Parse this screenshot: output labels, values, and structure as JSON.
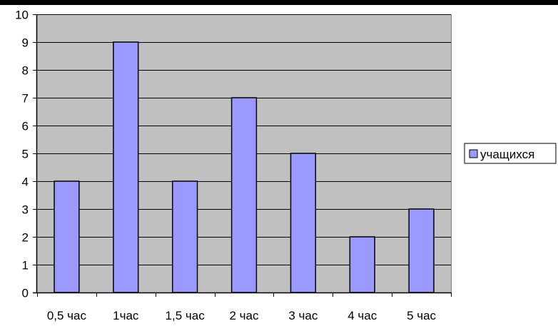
{
  "chart_data": {
    "type": "bar",
    "title": "",
    "xlabel": "",
    "ylabel": "",
    "categories": [
      "0,5 час",
      "1час",
      "1,5 час",
      "2 час",
      "3 час",
      "4 час",
      "5 час"
    ],
    "series": [
      {
        "name": "учащихся",
        "values": [
          4,
          9,
          4,
          7,
          5,
          2,
          3
        ]
      }
    ],
    "ylim": [
      0,
      10
    ],
    "yticks": [
      "0",
      "1",
      "2",
      "3",
      "4",
      "5",
      "6",
      "7",
      "8",
      "9",
      "10"
    ],
    "grid": true,
    "legend_position": "right",
    "colors": {
      "plot_background": "#c0c0c0",
      "bar_fill": "#9999ff",
      "bar_stroke": "#000000",
      "gridline": "#000000",
      "top_bar": "#000000"
    }
  }
}
